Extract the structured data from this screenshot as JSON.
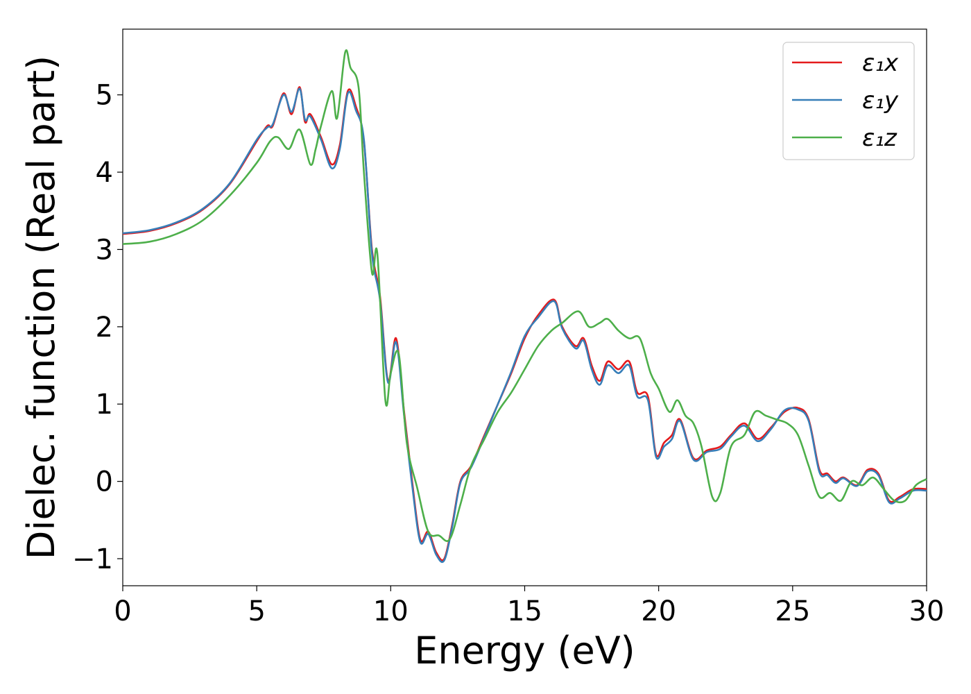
{
  "chart_data": {
    "type": "line",
    "title": "",
    "xlabel": "Energy (eV)",
    "ylabel": "Dielec. function (Real part)",
    "xlim": [
      0,
      30
    ],
    "ylim": [
      -1.35,
      5.85
    ],
    "xticks": [
      0,
      5,
      10,
      15,
      20,
      25,
      30
    ],
    "xtick_labels": [
      "0",
      "5",
      "10",
      "15",
      "20",
      "25",
      "30"
    ],
    "yticks": [
      -1,
      0,
      1,
      2,
      3,
      4,
      5
    ],
    "ytick_labels": [
      "−1",
      "0",
      "1",
      "2",
      "3",
      "4",
      "5"
    ],
    "grid": false,
    "legend_position": "top-right",
    "series": [
      {
        "name": "ε₁x",
        "color": "#e41a1c",
        "x": [
          0,
          1,
          2,
          3,
          4,
          5,
          5.4,
          5.6,
          6,
          6.3,
          6.6,
          6.8,
          7,
          7.4,
          7.8,
          8.1,
          8.4,
          8.7,
          9.0,
          9.3,
          9.6,
          9.9,
          10.2,
          10.5,
          10.8,
          11.1,
          11.4,
          11.7,
          12.0,
          12.3,
          12.6,
          13.0,
          13.5,
          14,
          14.5,
          15,
          15.5,
          16.1,
          16.4,
          16.9,
          17.2,
          17.5,
          17.8,
          18.1,
          18.5,
          18.9,
          19.2,
          19.6,
          19.9,
          20.2,
          20.5,
          20.8,
          21.3,
          21.8,
          22.3,
          22.7,
          23.2,
          23.7,
          24.2,
          24.7,
          25.2,
          25.6,
          26.0,
          26.3,
          26.6,
          26.9,
          27.4,
          27.8,
          28.2,
          28.6,
          29.0,
          29.5,
          30
        ],
        "values": [
          3.2,
          3.24,
          3.34,
          3.52,
          3.85,
          4.4,
          4.6,
          4.6,
          5.02,
          4.75,
          5.1,
          4.65,
          4.75,
          4.45,
          4.1,
          4.35,
          5.05,
          4.85,
          4.4,
          3.0,
          2.4,
          1.3,
          1.85,
          0.9,
          0.0,
          -0.75,
          -0.65,
          -0.92,
          -1.0,
          -0.55,
          0.0,
          0.2,
          0.6,
          1.0,
          1.4,
          1.85,
          2.15,
          2.35,
          2.0,
          1.75,
          1.85,
          1.5,
          1.3,
          1.55,
          1.45,
          1.55,
          1.15,
          1.1,
          0.35,
          0.5,
          0.6,
          0.8,
          0.3,
          0.4,
          0.45,
          0.6,
          0.75,
          0.55,
          0.7,
          0.9,
          0.95,
          0.8,
          0.15,
          0.1,
          0.0,
          0.05,
          -0.05,
          0.15,
          0.1,
          -0.25,
          -0.2,
          -0.1,
          -0.1
        ]
      },
      {
        "name": "ε₁y",
        "color": "#377eb8",
        "x": [
          0,
          1,
          2,
          3,
          4,
          5,
          5.4,
          5.6,
          6,
          6.3,
          6.6,
          6.8,
          7,
          7.4,
          7.8,
          8.1,
          8.4,
          8.7,
          9.0,
          9.3,
          9.6,
          9.9,
          10.2,
          10.5,
          10.8,
          11.1,
          11.4,
          11.7,
          12.0,
          12.3,
          12.6,
          13.0,
          13.5,
          14,
          14.5,
          15,
          15.5,
          16.1,
          16.4,
          16.9,
          17.2,
          17.5,
          17.8,
          18.1,
          18.5,
          18.9,
          19.2,
          19.6,
          19.9,
          20.2,
          20.5,
          20.8,
          21.3,
          21.8,
          22.3,
          22.7,
          23.2,
          23.7,
          24.2,
          24.7,
          25.2,
          25.6,
          26.0,
          26.3,
          26.6,
          26.9,
          27.4,
          27.8,
          28.2,
          28.6,
          29.0,
          29.5,
          30
        ],
        "values": [
          3.21,
          3.25,
          3.35,
          3.53,
          3.86,
          4.42,
          4.58,
          4.62,
          5.0,
          4.78,
          5.08,
          4.68,
          4.72,
          4.42,
          4.05,
          4.3,
          5.02,
          4.8,
          4.42,
          2.95,
          2.35,
          1.28,
          1.8,
          0.85,
          -0.05,
          -0.78,
          -0.68,
          -0.95,
          -1.02,
          -0.58,
          -0.02,
          0.18,
          0.58,
          1.0,
          1.42,
          1.88,
          2.12,
          2.33,
          1.98,
          1.72,
          1.82,
          1.45,
          1.25,
          1.5,
          1.4,
          1.5,
          1.1,
          1.05,
          0.32,
          0.45,
          0.55,
          0.78,
          0.28,
          0.38,
          0.42,
          0.58,
          0.72,
          0.52,
          0.68,
          0.92,
          0.93,
          0.78,
          0.12,
          0.08,
          -0.02,
          0.04,
          -0.06,
          0.13,
          0.08,
          -0.27,
          -0.22,
          -0.12,
          -0.12
        ]
      },
      {
        "name": "ε₁z",
        "color": "#4daf4a",
        "x": [
          0,
          1,
          2,
          3,
          4,
          5,
          5.5,
          5.8,
          6.2,
          6.6,
          7,
          7.2,
          7.4,
          7.8,
          8.0,
          8.3,
          8.5,
          8.8,
          9.0,
          9.3,
          9.5,
          9.8,
          10.0,
          10.3,
          10.6,
          11.0,
          11.4,
          11.8,
          12.2,
          12.6,
          13.0,
          13.5,
          14,
          14.5,
          15,
          15.5,
          16.0,
          16.4,
          17.0,
          17.4,
          17.8,
          18.1,
          18.5,
          18.9,
          19.3,
          19.7,
          20.0,
          20.4,
          20.7,
          21.0,
          21.3,
          21.6,
          22.0,
          22.3,
          22.7,
          23.2,
          23.6,
          24.0,
          24.4,
          24.8,
          25.2,
          25.6,
          26.0,
          26.4,
          26.8,
          27.2,
          27.6,
          28.0,
          28.4,
          28.8,
          29.2,
          29.6,
          30
        ],
        "values": [
          3.07,
          3.1,
          3.2,
          3.38,
          3.7,
          4.12,
          4.4,
          4.45,
          4.3,
          4.55,
          4.1,
          4.3,
          4.6,
          5.05,
          4.7,
          5.55,
          5.35,
          5.1,
          4.0,
          2.7,
          2.95,
          1.05,
          1.4,
          1.65,
          0.5,
          -0.1,
          -0.65,
          -0.7,
          -0.75,
          -0.3,
          0.2,
          0.55,
          0.9,
          1.15,
          1.45,
          1.75,
          1.95,
          2.05,
          2.2,
          2.0,
          2.05,
          2.1,
          1.95,
          1.85,
          1.85,
          1.4,
          1.2,
          0.9,
          1.05,
          0.85,
          0.75,
          0.45,
          -0.2,
          -0.15,
          0.45,
          0.6,
          0.9,
          0.85,
          0.8,
          0.75,
          0.6,
          0.2,
          -0.2,
          -0.15,
          -0.25,
          0.0,
          -0.05,
          0.05,
          -0.1,
          -0.25,
          -0.25,
          -0.05,
          0.03
        ]
      }
    ]
  }
}
